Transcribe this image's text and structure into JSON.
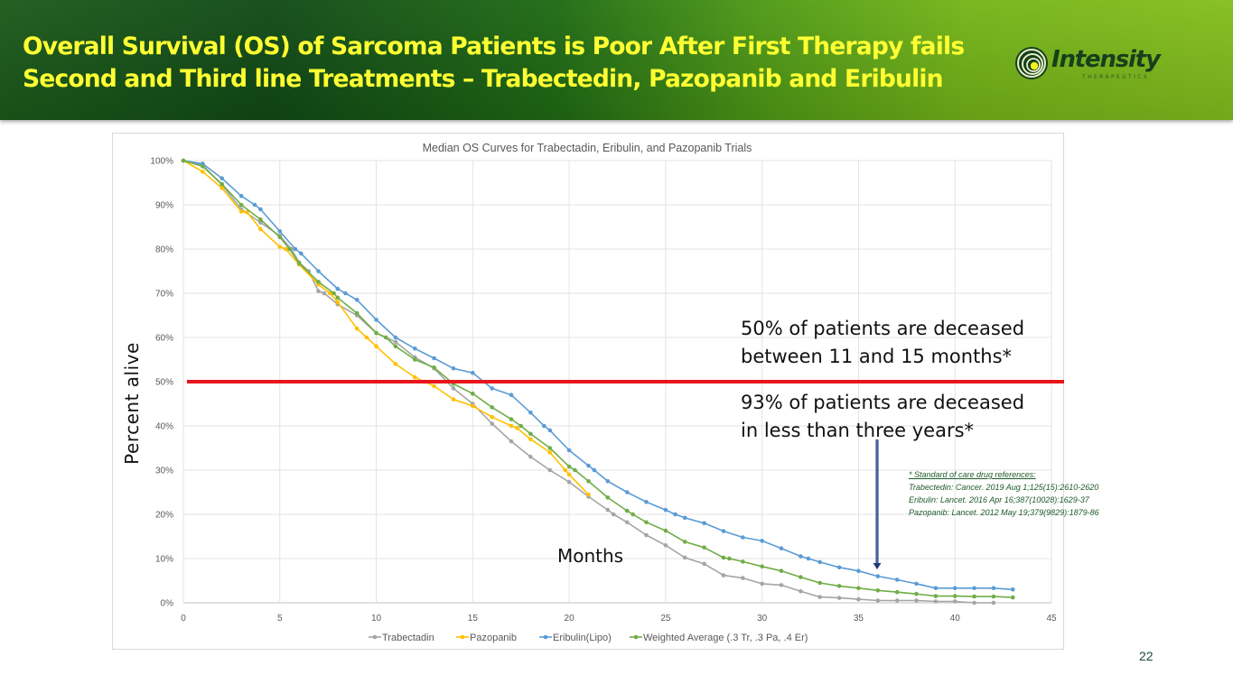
{
  "slide": {
    "title_lines": [
      "Overall Survival (OS) of Sarcoma Patients is Poor After First Therapy fails",
      "Second and Third line Treatments – Trabectedin, Pazopanib and Eribulin"
    ],
    "logo": {
      "name": "Intensity",
      "subtitle": "THERAPEUTICS",
      "icon": "concentric-rings-logo-icon"
    },
    "y_axis_label": "Percent alive",
    "x_axis_label": "Months",
    "annotations": [
      {
        "lines": [
          "50% of patients are deceased",
          "between 11 and 15 months*"
        ]
      },
      {
        "lines": [
          "93% of patients are deceased",
          "in less than three years*"
        ]
      }
    ],
    "references": {
      "heading": "* Standard of care drug references:",
      "items": [
        "Trabectedin: Cancer. 2019 Aug 1;125(15):2610-2620",
        "Eribulin: Lancet. 2016 Apr 16;387(10028):1629-37",
        "Pazopanib: Lancet. 2012 May 19;379(9829):1879-86"
      ]
    },
    "slide_number": "22",
    "colors": {
      "title_text": "#ffff33",
      "header_dark": "#114a16",
      "header_light": "#84be1e",
      "threshold_line": "#e8141c",
      "arrow": "#1f3a78"
    }
  },
  "chart_data": {
    "type": "line",
    "title": "Median OS Curves for Trabectadin, Eribulin, and Pazopanib Trials",
    "xlabel": "Months",
    "ylabel": "Percent alive",
    "xlim": [
      0,
      45
    ],
    "ylim": [
      0,
      100
    ],
    "x_ticks": [
      "0",
      "5",
      "10",
      "15",
      "20",
      "25",
      "30",
      "35",
      "40",
      "45"
    ],
    "y_ticks": [
      "0%",
      "10%",
      "20%",
      "30%",
      "40%",
      "50%",
      "60%",
      "70%",
      "80%",
      "90%",
      "100%"
    ],
    "grid": true,
    "legend": "bottom",
    "reference_line": {
      "y": 50,
      "label": "50% threshold"
    },
    "arrow_annotation": {
      "x": 36,
      "y_from": 37,
      "y_to": 7
    },
    "series": [
      {
        "name": "Trabectadin",
        "color": "#a5a5a5",
        "points": [
          [
            0,
            100
          ],
          [
            1,
            99
          ],
          [
            2,
            94.5
          ],
          [
            3,
            89
          ],
          [
            4,
            86
          ],
          [
            5,
            83
          ],
          [
            5.6,
            80
          ],
          [
            6,
            77
          ],
          [
            6.5,
            75
          ],
          [
            7,
            70.5
          ],
          [
            7.3,
            70
          ],
          [
            8,
            67.5
          ],
          [
            9,
            65
          ],
          [
            10,
            61
          ],
          [
            10.5,
            60
          ],
          [
            11,
            59
          ],
          [
            12,
            55.5
          ],
          [
            13,
            53
          ],
          [
            14,
            48.5
          ],
          [
            15,
            45
          ],
          [
            16,
            40.5
          ],
          [
            17,
            36.5
          ],
          [
            18,
            33
          ],
          [
            19,
            30
          ],
          [
            20,
            27.3
          ],
          [
            21,
            24
          ],
          [
            22,
            21
          ],
          [
            22.3,
            20
          ],
          [
            23,
            18.2
          ],
          [
            24,
            15.3
          ],
          [
            25,
            13
          ],
          [
            26,
            10.2
          ],
          [
            27,
            8.8
          ],
          [
            28,
            6.2
          ],
          [
            29,
            5.6
          ],
          [
            30,
            4.3
          ],
          [
            31,
            4
          ],
          [
            32,
            2.6
          ],
          [
            33,
            1.3
          ],
          [
            34,
            1.1
          ],
          [
            35,
            0.8
          ],
          [
            36,
            0.5
          ],
          [
            37,
            0.5
          ],
          [
            38,
            0.5
          ],
          [
            39,
            0.3
          ],
          [
            40,
            0.3
          ],
          [
            41,
            0
          ],
          [
            42,
            0
          ]
        ]
      },
      {
        "name": "Pazopanib",
        "color": "#ffc000",
        "points": [
          [
            0,
            100
          ],
          [
            1,
            97.5
          ],
          [
            2,
            93.8
          ],
          [
            3,
            88.5
          ],
          [
            3.3,
            88.3
          ],
          [
            4,
            84.5
          ],
          [
            5,
            80.5
          ],
          [
            5.3,
            80
          ],
          [
            6,
            76.5
          ],
          [
            7,
            72
          ],
          [
            7.6,
            70
          ],
          [
            8,
            68
          ],
          [
            9,
            62
          ],
          [
            9.5,
            60
          ],
          [
            10,
            58
          ],
          [
            11,
            54
          ],
          [
            12,
            51
          ],
          [
            12.5,
            50
          ],
          [
            13,
            49
          ],
          [
            14,
            46
          ],
          [
            15,
            44.5
          ],
          [
            16,
            42
          ],
          [
            17,
            40
          ],
          [
            17.3,
            39.5
          ],
          [
            18,
            37
          ],
          [
            19,
            34
          ],
          [
            19.8,
            30
          ],
          [
            20,
            29
          ],
          [
            21,
            24.5
          ]
        ]
      },
      {
        "name": "Eribulin(Lipo)",
        "color": "#5b9bd5",
        "points": [
          [
            0,
            100
          ],
          [
            1,
            99.3
          ],
          [
            2,
            96
          ],
          [
            3,
            92
          ],
          [
            3.7,
            90
          ],
          [
            4,
            89
          ],
          [
            5,
            84
          ],
          [
            5.8,
            80
          ],
          [
            6.1,
            79
          ],
          [
            7,
            75
          ],
          [
            8,
            71
          ],
          [
            8.4,
            70
          ],
          [
            9,
            68.5
          ],
          [
            10,
            64
          ],
          [
            11,
            60
          ],
          [
            12,
            57.5
          ],
          [
            13,
            55.3
          ],
          [
            14,
            53
          ],
          [
            15,
            52
          ],
          [
            16,
            48.5
          ],
          [
            17,
            47
          ],
          [
            18,
            43
          ],
          [
            18.7,
            40
          ],
          [
            19,
            39
          ],
          [
            20,
            34.5
          ],
          [
            21,
            31
          ],
          [
            21.3,
            30
          ],
          [
            22,
            27.5
          ],
          [
            23,
            25
          ],
          [
            24,
            22.8
          ],
          [
            25,
            21
          ],
          [
            25.5,
            20
          ],
          [
            26,
            19.2
          ],
          [
            27,
            18
          ],
          [
            28,
            16.2
          ],
          [
            29,
            14.8
          ],
          [
            30,
            14
          ],
          [
            31,
            12.3
          ],
          [
            32,
            10.5
          ],
          [
            32.4,
            10
          ],
          [
            33,
            9.2
          ],
          [
            34,
            8
          ],
          [
            35,
            7.2
          ],
          [
            36,
            6
          ],
          [
            37,
            5.2
          ],
          [
            38,
            4.3
          ],
          [
            39,
            3.3
          ],
          [
            40,
            3.3
          ],
          [
            41,
            3.3
          ],
          [
            42,
            3.3
          ],
          [
            43,
            3
          ]
        ]
      },
      {
        "name": "Weighted Average (.3 Tr, .3 Pa, .4 Er)",
        "color": "#70ad47",
        "points": [
          [
            0,
            100
          ],
          [
            1,
            98.7
          ],
          [
            2,
            94.7
          ],
          [
            3,
            90
          ],
          [
            4,
            86.7
          ],
          [
            5,
            82.7
          ],
          [
            5.5,
            80
          ],
          [
            6,
            76.8
          ],
          [
            7,
            72.6
          ],
          [
            7.8,
            70
          ],
          [
            8,
            69
          ],
          [
            9,
            65.5
          ],
          [
            10,
            61
          ],
          [
            10.5,
            60
          ],
          [
            11,
            58
          ],
          [
            12,
            55
          ],
          [
            13,
            53.2
          ],
          [
            14,
            49.5
          ],
          [
            15,
            47.3
          ],
          [
            16,
            44.2
          ],
          [
            17,
            41.5
          ],
          [
            17.5,
            40
          ],
          [
            18,
            38.2
          ],
          [
            19,
            35
          ],
          [
            20,
            30.8
          ],
          [
            20.3,
            30
          ],
          [
            21,
            27.5
          ],
          [
            22,
            23.8
          ],
          [
            23,
            20.8
          ],
          [
            23.3,
            20
          ],
          [
            24,
            18.2
          ],
          [
            25,
            16.3
          ],
          [
            26,
            13.8
          ],
          [
            27,
            12.5
          ],
          [
            28,
            10.2
          ],
          [
            28.3,
            10
          ],
          [
            29,
            9.3
          ],
          [
            30,
            8.2
          ],
          [
            31,
            7.2
          ],
          [
            32,
            5.8
          ],
          [
            33,
            4.5
          ],
          [
            34,
            3.8
          ],
          [
            35,
            3.3
          ],
          [
            36,
            2.8
          ],
          [
            37,
            2.4
          ],
          [
            38,
            2
          ],
          [
            39,
            1.5
          ],
          [
            40,
            1.5
          ],
          [
            41,
            1.4
          ],
          [
            42,
            1.4
          ],
          [
            43,
            1.2
          ]
        ]
      }
    ]
  }
}
